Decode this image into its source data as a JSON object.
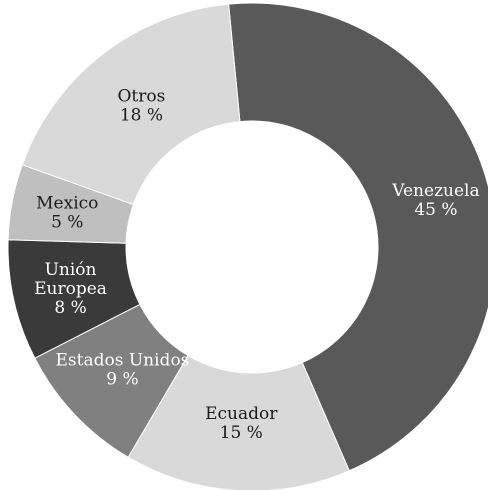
{
  "chart_data": {
    "type": "pie",
    "variant": "donut",
    "slices": [
      {
        "label_lines": [
          "Venezuela"
        ],
        "value": 45,
        "value_label": "45 %",
        "color": "#595959",
        "text_color": "#ffffff"
      },
      {
        "label_lines": [
          "Ecuador"
        ],
        "value": 15,
        "value_label": "15 %",
        "color": "#d9d9d9",
        "text_color": "#1a1a1a"
      },
      {
        "label_lines": [
          "Estados Unidos"
        ],
        "value": 9,
        "value_label": "9 %",
        "color": "#808080",
        "text_color": "#ffffff"
      },
      {
        "label_lines": [
          "Unión",
          "Europea"
        ],
        "value": 8,
        "value_label": "8 %",
        "color": "#3a3a3a",
        "text_color": "#ffffff"
      },
      {
        "label_lines": [
          "Mexico"
        ],
        "value": 5,
        "value_label": "5 %",
        "color": "#bfbfbf",
        "text_color": "#1a1a1a"
      },
      {
        "label_lines": [
          "Otros"
        ],
        "value": 18,
        "value_label": "18 %",
        "color": "#d9d9d9",
        "text_color": "#1a1a1a"
      }
    ],
    "legend": "none"
  }
}
